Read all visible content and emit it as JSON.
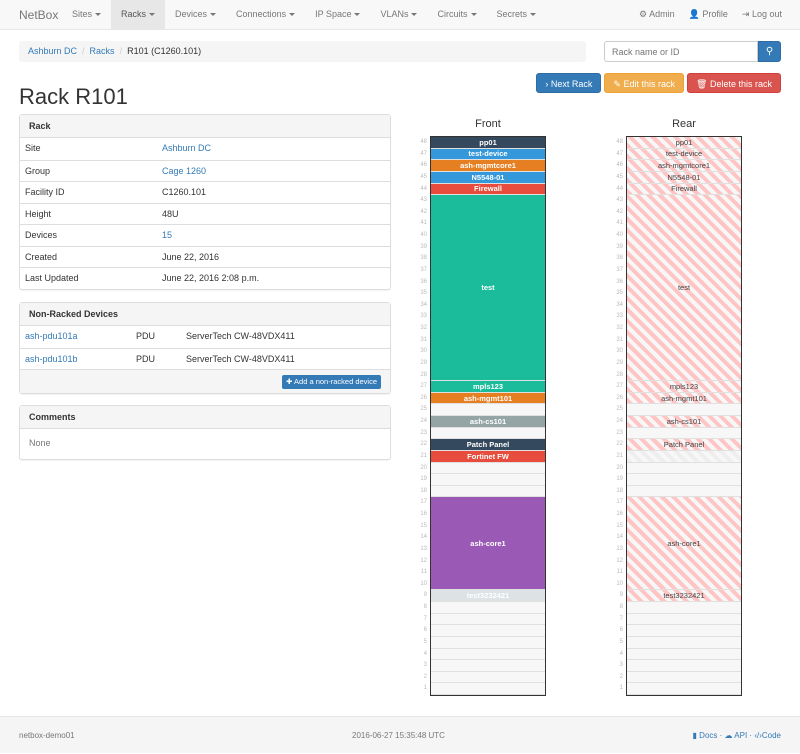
{
  "nav": {
    "brand": "NetBox",
    "items": [
      "Sites",
      "Racks",
      "Devices",
      "Connections",
      "IP Space",
      "VLANs",
      "Circuits",
      "Secrets"
    ],
    "active": "Racks",
    "admin": "Admin",
    "profile": "Profile",
    "logout": "Log out"
  },
  "breadcrumb": [
    "Ashburn DC",
    "Racks",
    "R101 (C1260.101)"
  ],
  "search": {
    "placeholder": "Rack name or ID"
  },
  "buttons": {
    "next": "Next Rack",
    "edit": "Edit this rack",
    "delete": "Delete this rack"
  },
  "title": "Rack R101",
  "rack_panel": {
    "heading": "Rack",
    "rows": [
      {
        "k": "Site",
        "v": "Ashburn DC",
        "link": true
      },
      {
        "k": "Group",
        "v": "Cage 1260",
        "link": true
      },
      {
        "k": "Facility ID",
        "v": "C1260.101"
      },
      {
        "k": "Height",
        "v": "48U"
      },
      {
        "k": "Devices",
        "v": "15",
        "link": true
      },
      {
        "k": "Created",
        "v": "June 22, 2016"
      },
      {
        "k": "Last Updated",
        "v": "June 22, 2016 2:08 p.m."
      }
    ]
  },
  "nonracked": {
    "heading": "Non-Racked Devices",
    "rows": [
      {
        "name": "ash-pdu101a",
        "role": "PDU",
        "type": "ServerTech CW-48VDX411"
      },
      {
        "name": "ash-pdu101b",
        "role": "PDU",
        "type": "ServerTech CW-48VDX411"
      }
    ],
    "add_label": "Add a non-racked device"
  },
  "comments": {
    "heading": "Comments",
    "body": "None"
  },
  "rack": {
    "u_height": 48,
    "front_label": "Front",
    "rear_label": "Rear",
    "devices": [
      {
        "name": "pp01",
        "top": 48,
        "height": 1,
        "color": "#34495e",
        "full_depth": true
      },
      {
        "name": "test-device",
        "top": 47,
        "height": 1,
        "color": "#3498db",
        "full_depth": true
      },
      {
        "name": "ash-mgmtcore1",
        "top": 46,
        "height": 1,
        "color": "#e67e22",
        "full_depth": true
      },
      {
        "name": "N5548-01",
        "top": 45,
        "height": 1,
        "color": "#3498db",
        "full_depth": true
      },
      {
        "name": "Firewall",
        "top": 44,
        "height": 1,
        "color": "#e74c3c",
        "full_depth": true
      },
      {
        "name": "test",
        "top": 43,
        "height": 16,
        "color": "#1abc9c",
        "full_depth": true
      },
      {
        "name": "mpls123",
        "top": 27,
        "height": 1,
        "color": "#1abc9c",
        "full_depth": true
      },
      {
        "name": "ash-mgmt101",
        "top": 26,
        "height": 1,
        "color": "#e67e22",
        "full_depth": true
      },
      {
        "name": "ash-cs101",
        "top": 24,
        "height": 1,
        "color": "#95a5a6",
        "full_depth": true
      },
      {
        "name": "Patch Panel",
        "top": 22,
        "height": 1,
        "color": "#34495e",
        "full_depth": true
      },
      {
        "name": "Fortinet FW",
        "top": 21,
        "height": 1,
        "color": "#e74c3c",
        "full_depth": false
      },
      {
        "name": "ash-core1",
        "top": 17,
        "height": 8,
        "color": "#9b59b6",
        "full_depth": true
      },
      {
        "name": "test3232421",
        "top": 9,
        "height": 1,
        "color": "#dde2e4",
        "full_depth": true
      }
    ]
  },
  "footer": {
    "host": "netbox-demo01",
    "time": "2016-06-27 15:35:48 UTC",
    "docs": "Docs",
    "api": "API",
    "code": "Code"
  }
}
